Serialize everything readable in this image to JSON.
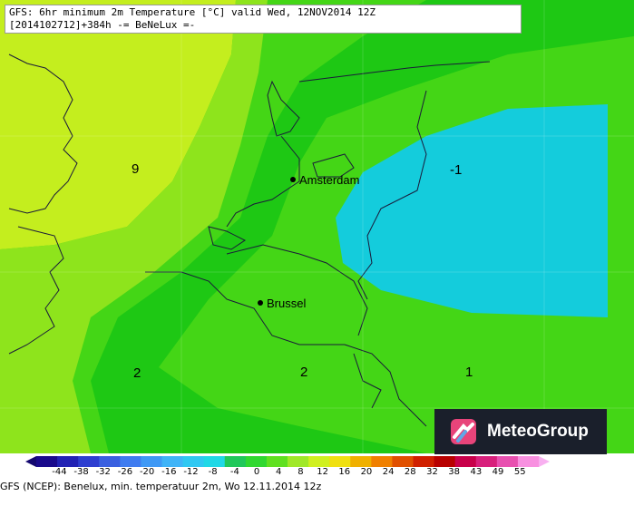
{
  "title": {
    "line1": "GFS: 6hr minimum 2m Temperature [°C] valid Wed, 12NOV2014 12Z",
    "line2": "[2014102712]+384h -= BeNeLux =-"
  },
  "cities": [
    {
      "name": "Amsterdam"
    },
    {
      "name": "Brussel"
    }
  ],
  "contour_labels": [
    "9",
    "-1",
    "2",
    "2",
    "1"
  ],
  "scale": {
    "ticks": [
      "-44",
      "-38",
      "-32",
      "-26",
      "-20",
      "-16",
      "-12",
      "-8",
      "-4",
      "0",
      "4",
      "8",
      "12",
      "16",
      "20",
      "24",
      "28",
      "32",
      "38",
      "43",
      "49",
      "55"
    ],
    "colors": [
      "#1a0a8c",
      "#2222b4",
      "#2e3fd0",
      "#3a60e0",
      "#3f7cf0",
      "#3f99f5",
      "#40b4f8",
      "#30c8f2",
      "#20d8e6",
      "#20c85a",
      "#30d830",
      "#60e020",
      "#a0e828",
      "#d0f020",
      "#f0e010",
      "#f0b000",
      "#f08000",
      "#e05000",
      "#d02000",
      "#b80000",
      "#c8004a",
      "#d8207c",
      "#e850b0",
      "#f890e0"
    ],
    "colors_note": ""
  },
  "fill_colors": {
    "yellow_green": "#c4ee1e",
    "light_green": "#8ee41c",
    "green": "#44d616",
    "bright_green": "#1ec814",
    "cyan": "#14ccdc",
    "coastline": "#1a1a3a"
  },
  "caption": "GFS (NCEP): Benelux, min. temperatuur 2m, Wo 12.11.2014 12z",
  "logo": {
    "text": "MeteoGroup"
  }
}
